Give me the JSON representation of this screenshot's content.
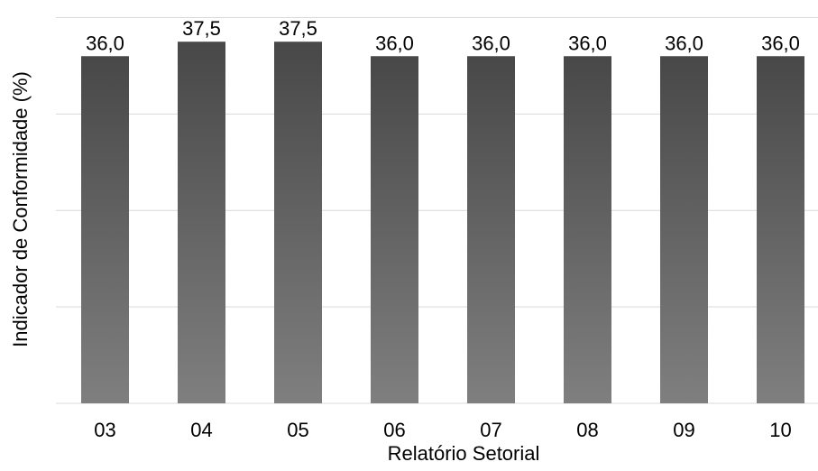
{
  "chart_data": {
    "type": "bar",
    "title": "",
    "xlabel": "Relatório Setorial",
    "ylabel": "Indicador de Conformidade (%)",
    "categories": [
      "03",
      "04",
      "05",
      "06",
      "07",
      "08",
      "09",
      "10"
    ],
    "values": [
      36.0,
      37.5,
      37.5,
      36.0,
      36.0,
      36.0,
      36.0,
      36.0
    ],
    "data_labels": [
      "36,0",
      "37,5",
      "37,5",
      "36,0",
      "36,0",
      "36,0",
      "36,0",
      "36,0"
    ],
    "ylim": [
      0,
      40
    ],
    "grid": true,
    "legend": "none",
    "colors": {
      "bar_top": "#484848",
      "bar_bottom": "#7f7f7f",
      "grid": "#d9d9d9",
      "text": "#000000"
    }
  }
}
